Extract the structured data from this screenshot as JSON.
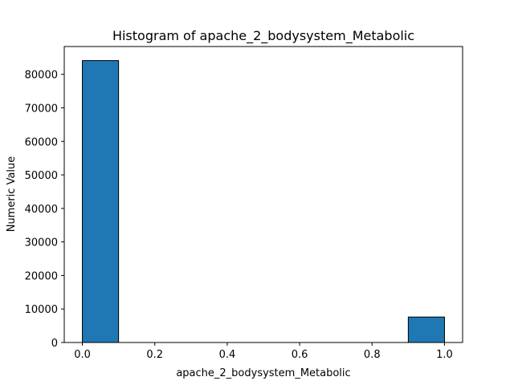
{
  "chart_data": {
    "type": "bar",
    "title": "Histogram of apache_2_bodysystem_Metabolic",
    "xlabel": "apache_2_bodysystem_Metabolic",
    "ylabel": "Numeric Value",
    "bins": [
      {
        "x0": 0.0,
        "x1": 0.1,
        "value": 84100
      },
      {
        "x0": 0.1,
        "x1": 0.2,
        "value": 0
      },
      {
        "x0": 0.2,
        "x1": 0.3,
        "value": 0
      },
      {
        "x0": 0.3,
        "x1": 0.4,
        "value": 0
      },
      {
        "x0": 0.4,
        "x1": 0.5,
        "value": 0
      },
      {
        "x0": 0.5,
        "x1": 0.6,
        "value": 0
      },
      {
        "x0": 0.6,
        "x1": 0.7,
        "value": 0
      },
      {
        "x0": 0.7,
        "x1": 0.8,
        "value": 0
      },
      {
        "x0": 0.8,
        "x1": 0.9,
        "value": 0
      },
      {
        "x0": 0.9,
        "x1": 1.0,
        "value": 7600
      }
    ],
    "xlim": [
      -0.05,
      1.05
    ],
    "ylim": [
      0,
      88300
    ],
    "xticks": [
      0.0,
      0.2,
      0.4,
      0.6,
      0.8,
      1.0
    ],
    "xtick_labels": [
      "0.0",
      "0.2",
      "0.4",
      "0.6",
      "0.8",
      "1.0"
    ],
    "yticks": [
      0,
      10000,
      20000,
      30000,
      40000,
      50000,
      60000,
      70000,
      80000
    ],
    "ytick_labels": [
      "0",
      "10000",
      "20000",
      "30000",
      "40000",
      "50000",
      "60000",
      "70000",
      "80000"
    ],
    "grid": false,
    "colors": {
      "bar_fill": "#1f77b4",
      "bar_edge": "#000000",
      "axes": "#000000"
    }
  }
}
